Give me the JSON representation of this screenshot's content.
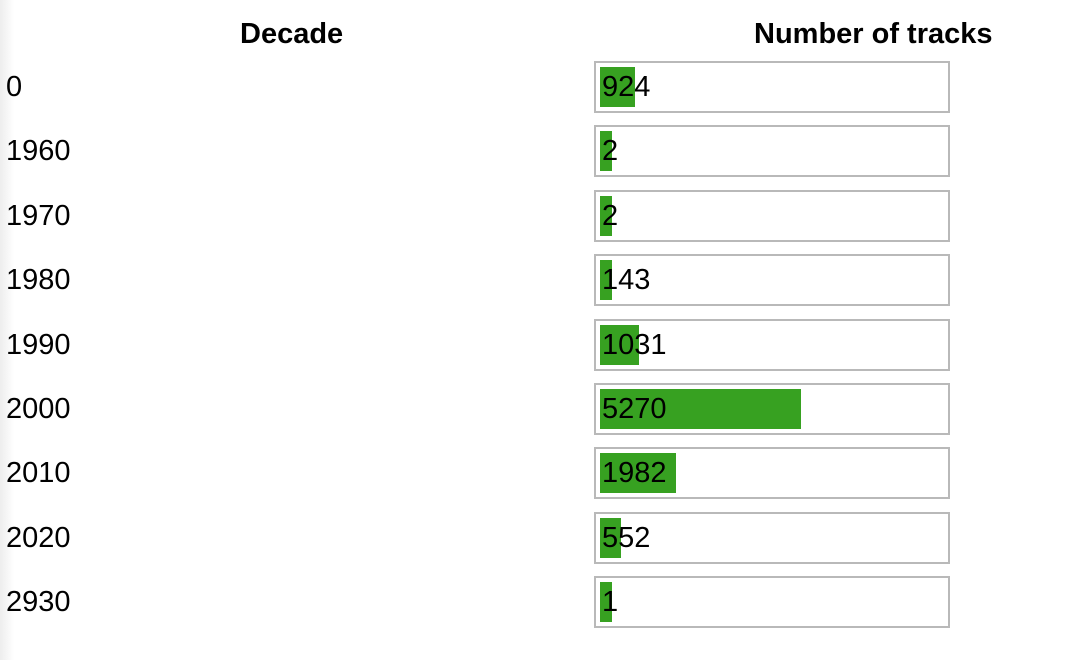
{
  "table": {
    "decade_header": "Decade",
    "count_header": "Number of tracks"
  },
  "colors": {
    "bar": "#37a121",
    "bar_border": "#b9b9b9"
  },
  "chart_data": {
    "type": "bar",
    "orientation": "horizontal",
    "title": "",
    "xlabel": "Number of tracks",
    "ylabel": "Decade",
    "categories": [
      "0",
      "1960",
      "1970",
      "1980",
      "1990",
      "2000",
      "2010",
      "2020",
      "2930"
    ],
    "values": [
      924,
      2,
      2,
      143,
      1031,
      5270,
      1982,
      552,
      1
    ],
    "value_labels": [
      "924",
      "2",
      "2",
      "143",
      "1031",
      "5270",
      "1982",
      "552",
      "1"
    ],
    "xlim": [
      0,
      9000
    ],
    "grid": false,
    "legend": "none"
  }
}
